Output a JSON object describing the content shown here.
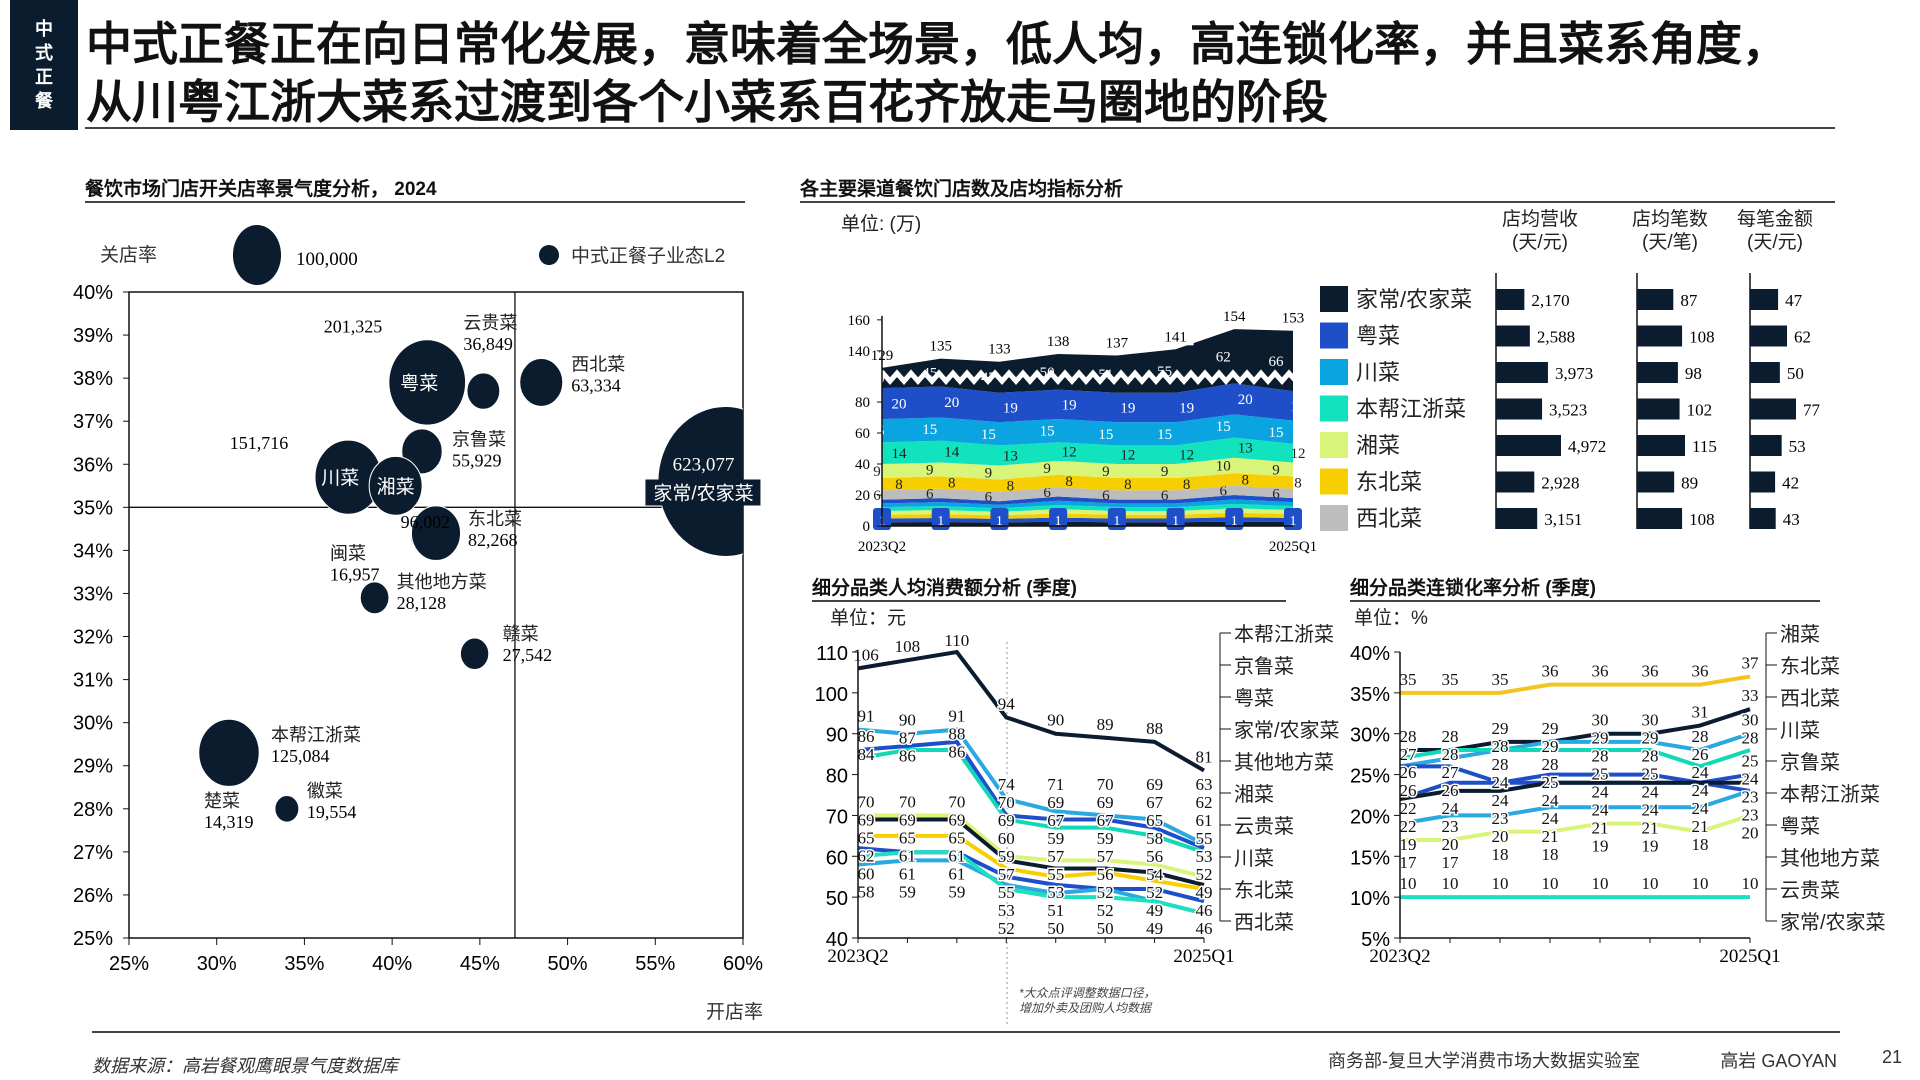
{
  "section_tag": [
    "中",
    "式",
    "正",
    "餐"
  ],
  "title": {
    "line1": "中式正餐正在向日常化发展，意味着全场景，低人均，高连锁化率，并且菜系角度，",
    "line2": "从川粤江浙大菜系过渡到各个小菜系百花齐放走马圈地的阶段"
  },
  "colors": {
    "navy": "#0b1c2e",
    "blue": "#1f4fc8",
    "sky": "#0aa5e0",
    "teal": "#12e3bf",
    "lime": "#d8f57a",
    "yellow": "#f7cf00",
    "gray": "#bdbdbd"
  },
  "chart_data": [
    {
      "id": "bubble",
      "type": "scatter",
      "title": "餐饮市场门店开关店率景气度分析， 2024",
      "xlabel": "开店率",
      "ylabel": "关店率",
      "xlim": [
        25,
        60
      ],
      "ylim": [
        25,
        40
      ],
      "xticks": [
        "25%",
        "30%",
        "35%",
        "40%",
        "45%",
        "50%",
        "55%",
        "60%"
      ],
      "yticks": [
        "25%",
        "26%",
        "27%",
        "28%",
        "29%",
        "30%",
        "31%",
        "32%",
        "33%",
        "34%",
        "35%",
        "36%",
        "37%",
        "38%",
        "39%",
        "40%"
      ],
      "reference_lines": {
        "x": 47,
        "y": 35
      },
      "size_legend": {
        "value": 100000,
        "label": "100,000"
      },
      "legend": "中式正餐子业态L2",
      "points": [
        {
          "name": "粤菜",
          "x": 42.0,
          "y": 37.9,
          "size": 201325,
          "size_label": "201,325"
        },
        {
          "name": "云贵菜",
          "x": 45.2,
          "y": 37.7,
          "size": 36849,
          "size_label": "36,849"
        },
        {
          "name": "西北菜",
          "x": 48.5,
          "y": 37.9,
          "size": 63334,
          "size_label": "63,334"
        },
        {
          "name": "家常/农家菜",
          "x": 59.0,
          "y": 35.6,
          "size": 623077,
          "size_label": "623,077"
        },
        {
          "name": "京鲁菜",
          "x": 41.7,
          "y": 36.3,
          "size": 55929,
          "size_label": "55,929"
        },
        {
          "name": "川菜",
          "x": 37.5,
          "y": 35.7,
          "size": 151716,
          "size_label": "151,716"
        },
        {
          "name": "湘菜",
          "x": 40.2,
          "y": 35.5,
          "size": 96002,
          "size_label": "96,002"
        },
        {
          "name": "闽菜",
          "x": 41.7,
          "y": 34.3,
          "size": 16957,
          "size_label": "16,957"
        },
        {
          "name": "东北菜",
          "x": 42.5,
          "y": 34.4,
          "size": 82268,
          "size_label": "82,268"
        },
        {
          "name": "其他地方菜",
          "x": 39.0,
          "y": 32.9,
          "size": 28128,
          "size_label": "28,128"
        },
        {
          "name": "赣菜",
          "x": 44.7,
          "y": 31.6,
          "size": 27542,
          "size_label": "27,542"
        },
        {
          "name": "楚菜",
          "x": 30.7,
          "y": 29.2,
          "size": 14319,
          "size_label": "14,319"
        },
        {
          "name": "本帮江浙菜",
          "x": 30.7,
          "y": 29.3,
          "size": 125084,
          "size_label": "125,084"
        },
        {
          "name": "徽菜",
          "x": 34.0,
          "y": 28.0,
          "size": 19554,
          "size_label": "19,554"
        }
      ]
    },
    {
      "id": "stores",
      "type": "area",
      "title": "各主要渠道餐饮门店数及店均指标分析",
      "unit": "单位: (万)",
      "x_first": "2023Q2",
      "x_last": "2025Q1",
      "categories": [
        "2023Q2",
        "2023Q3",
        "2023Q4",
        "2024Q1",
        "2024Q2",
        "2024Q3",
        "2024Q4",
        "2025Q1"
      ],
      "yticks": [
        0,
        20,
        40,
        60,
        80,
        140,
        160
      ],
      "axis_break": true,
      "totals": [
        129,
        135,
        133,
        138,
        137,
        141,
        154,
        153
      ],
      "series": [
        {
          "name": "西北菜",
          "color": "#bdbdbd",
          "values": [
            6,
            6,
            6,
            6,
            6,
            6,
            6,
            6
          ],
          "dark_text": true
        },
        {
          "name": "东北菜",
          "color": "#f7cf00",
          "values": [
            8,
            8,
            8,
            8,
            8,
            8,
            8,
            8
          ],
          "dark_text": true
        },
        {
          "name": "湘菜",
          "color": "#d8f57a",
          "values": [
            9,
            9,
            9,
            9,
            9,
            9,
            10,
            9
          ],
          "dark_text": true
        },
        {
          "name": "本帮江浙菜",
          "color": "#12e3bf",
          "values": [
            14,
            14,
            13,
            12,
            12,
            12,
            13,
            12
          ],
          "dark_text": true
        },
        {
          "name": "川菜",
          "color": "#0aa5e0",
          "values": [
            15,
            15,
            15,
            15,
            15,
            15,
            15,
            15
          ]
        },
        {
          "name": "粤菜",
          "color": "#1f4fc8",
          "values": [
            20,
            20,
            19,
            19,
            19,
            19,
            20,
            19
          ]
        },
        {
          "name": "家常/农家菜",
          "color": "#0b1c2e",
          "values": [
            40,
            45,
            47,
            50,
            51,
            55,
            62,
            66
          ]
        }
      ],
      "bottom_band_label": "1",
      "metrics": {
        "headers": [
          {
            "line1": "店均营收",
            "line2": "(天/元)"
          },
          {
            "line1": "店均笔数",
            "line2": "(天/笔)"
          },
          {
            "line1": "每笔金额",
            "line2": "(天/元)"
          }
        ],
        "rows": [
          {
            "name": "家常/农家菜",
            "color": "#0b1c2e",
            "revenue": 2170,
            "revenue_label": "2,170",
            "orders": 87,
            "orders_label": "87",
            "ticket": 47,
            "ticket_label": "47"
          },
          {
            "name": "粤菜",
            "color": "#1f4fc8",
            "revenue": 2588,
            "revenue_label": "2,588",
            "orders": 108,
            "orders_label": "108",
            "ticket": 62,
            "ticket_label": "62"
          },
          {
            "name": "川菜",
            "color": "#0aa5e0",
            "revenue": 3973,
            "revenue_label": "3,973",
            "orders": 98,
            "orders_label": "98",
            "ticket": 50,
            "ticket_label": "50"
          },
          {
            "name": "本帮江浙菜",
            "color": "#12e3bf",
            "revenue": 3523,
            "revenue_label": "3,523",
            "orders": 102,
            "orders_label": "102",
            "ticket": 77,
            "ticket_label": "77"
          },
          {
            "name": "湘菜",
            "color": "#d8f57a",
            "revenue": 4972,
            "revenue_label": "4,972",
            "orders": 115,
            "orders_label": "115",
            "ticket": 53,
            "ticket_label": "53"
          },
          {
            "name": "东北菜",
            "color": "#f7cf00",
            "revenue": 2928,
            "revenue_label": "2,928",
            "orders": 89,
            "orders_label": "89",
            "ticket": 42,
            "ticket_label": "42"
          },
          {
            "name": "西北菜",
            "color": "#bdbdbd",
            "revenue": 3151,
            "revenue_label": "3,151",
            "orders": 108,
            "orders_label": "108",
            "ticket": 43,
            "ticket_label": "43"
          }
        ]
      }
    },
    {
      "id": "spend",
      "type": "line",
      "title": "细分品类人均消费额分析 (季度)",
      "unit": "单位：元",
      "x_first": "2023Q2",
      "x_last": "2025Q1",
      "categories": [
        "2023Q2",
        "2023Q3",
        "2023Q4",
        "2024Q1",
        "2024Q2",
        "2024Q3",
        "2024Q4",
        "2025Q1"
      ],
      "ylim": [
        40,
        110
      ],
      "yticks": [
        40,
        50,
        60,
        70,
        80,
        90,
        100,
        110
      ],
      "footnote": [
        "*大众点评调整数据口径，",
        "增加外卖及团购人均数据"
      ],
      "series": [
        {
          "name": "本帮江浙菜",
          "color": "#0b1c2e",
          "values": [
            106,
            108,
            110,
            94,
            90,
            89,
            88,
            81
          ]
        },
        {
          "name": "京鲁菜",
          "color": "#2aa8e0",
          "values": [
            91,
            90,
            91,
            74,
            71,
            70,
            69,
            63
          ]
        },
        {
          "name": "粤菜",
          "color": "#1f4fc8",
          "values": [
            86,
            87,
            88,
            70,
            69,
            69,
            67,
            62
          ]
        },
        {
          "name": "家常/农家菜",
          "color": "#12d8b8",
          "values": [
            84,
            86,
            86,
            69,
            67,
            67,
            65,
            61
          ]
        },
        {
          "name": "其他地方菜",
          "color": "#d8f57a",
          "values": [
            70,
            70,
            70,
            60,
            59,
            59,
            58,
            55
          ]
        },
        {
          "name": "湘菜",
          "color": "#0b1c2e",
          "values": [
            69,
            69,
            69,
            59,
            57,
            57,
            56,
            53
          ]
        },
        {
          "name": "云贵菜",
          "color": "#f7cf00",
          "values": [
            65,
            65,
            65,
            57,
            55,
            56,
            54,
            52
          ]
        },
        {
          "name": "川菜",
          "color": "#1f4fc8",
          "values": [
            62,
            61,
            61,
            55,
            53,
            52,
            52,
            49
          ]
        },
        {
          "name": "东北菜",
          "color": "#2aa8e0",
          "values": [
            58,
            59,
            59,
            53,
            51,
            52,
            49,
            46
          ]
        },
        {
          "name": "西北菜",
          "color": "#1ee0c0",
          "values": [
            60,
            61,
            61,
            52,
            50,
            50,
            49,
            46
          ]
        }
      ]
    },
    {
      "id": "chain",
      "type": "line",
      "title": "细分品类连锁化率分析 (季度)",
      "unit": "单位：%",
      "x_first": "2023Q2",
      "x_last": "2025Q1",
      "categories": [
        "2023Q2",
        "2023Q3",
        "2023Q4",
        "2024Q1",
        "2024Q2",
        "2024Q3",
        "2024Q4",
        "2025Q1"
      ],
      "ylim": [
        5,
        40
      ],
      "yticks": [
        "5%",
        "10%",
        "15%",
        "20%",
        "25%",
        "30%",
        "35%",
        "40%"
      ],
      "series": [
        {
          "name": "湘菜",
          "color": "#f2c61f",
          "values": [
            35,
            35,
            35,
            36,
            36,
            36,
            36,
            37
          ]
        },
        {
          "name": "东北菜",
          "color": "#0b1c2e",
          "values": [
            28,
            28,
            29,
            29,
            30,
            30,
            31,
            33
          ]
        },
        {
          "name": "西北菜",
          "color": "#2aa8e0",
          "values": [
            26,
            27,
            28,
            29,
            29,
            29,
            28,
            30
          ]
        },
        {
          "name": "川菜",
          "color": "#12d8b8",
          "values": [
            27,
            28,
            28,
            28,
            28,
            28,
            26,
            28
          ]
        },
        {
          "name": "京鲁菜",
          "color": "#1f4fc8",
          "values": [
            26,
            26,
            24,
            25,
            25,
            25,
            24,
            25
          ]
        },
        {
          "name": "本帮江浙菜",
          "color": "#1f4fc8",
          "values": [
            22,
            24,
            24,
            24,
            24,
            24,
            24,
            23
          ]
        },
        {
          "name": "粤菜",
          "color": "#2aa8e0",
          "values": [
            19,
            20,
            20,
            21,
            21,
            21,
            21,
            23
          ]
        },
        {
          "name": "其他地方菜",
          "color": "#d8f57a",
          "values": [
            17,
            17,
            18,
            18,
            19,
            19,
            18,
            20
          ]
        },
        {
          "name": "云贵菜",
          "color": "#0b1c2e",
          "values": [
            22,
            23,
            23,
            24,
            24,
            24,
            24,
            24
          ]
        },
        {
          "name": "家常/农家菜",
          "color": "#1ee0c0",
          "values": [
            10,
            10,
            10,
            10,
            10,
            10,
            10,
            10
          ]
        }
      ]
    }
  ],
  "footer": {
    "source": "数据来源：高岩餐观鹰眼景气度数据库",
    "org": "商务部-复旦大学消费市场大数据实验室",
    "brand": "高岩 GAOYAN",
    "page": "21"
  }
}
